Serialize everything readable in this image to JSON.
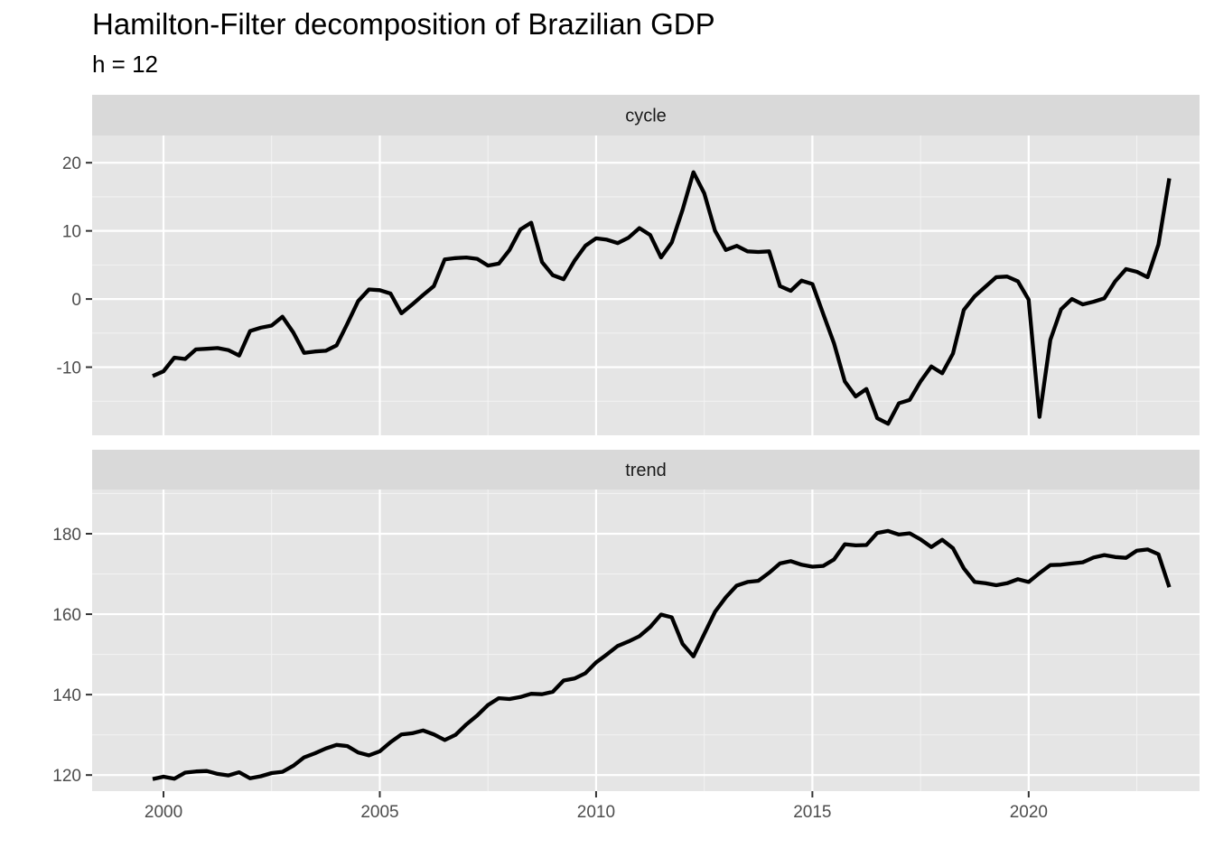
{
  "title": "Hamilton-Filter decomposition of Brazilian GDP",
  "subtitle": "h = 12",
  "chart_data": {
    "type": "line",
    "title": "Hamilton-Filter decomposition of Brazilian GDP",
    "subtitle": "h = 12",
    "xlabel": "",
    "ylabel": "",
    "grid": true,
    "legend": "none",
    "line_color": "#000000",
    "panel_background": "#e5e5e5",
    "strip_background": "#d9d9d9",
    "x_ticks": [
      2000,
      2005,
      2010,
      2015,
      2020
    ],
    "x": [
      1999.75,
      2000.0,
      2000.25,
      2000.5,
      2000.75,
      2001.0,
      2001.25,
      2001.5,
      2001.75,
      2002.0,
      2002.25,
      2002.5,
      2002.75,
      2003.0,
      2003.25,
      2003.5,
      2003.75,
      2004.0,
      2004.25,
      2004.5,
      2004.75,
      2005.0,
      2005.25,
      2005.5,
      2005.75,
      2006.0,
      2006.25,
      2006.5,
      2006.75,
      2007.0,
      2007.25,
      2007.5,
      2007.75,
      2008.0,
      2008.25,
      2008.5,
      2008.75,
      2009.0,
      2009.25,
      2009.5,
      2009.75,
      2010.0,
      2010.25,
      2010.5,
      2010.75,
      2011.0,
      2011.25,
      2011.5,
      2011.75,
      2012.0,
      2012.25,
      2012.5,
      2012.75,
      2013.0,
      2013.25,
      2013.5,
      2013.75,
      2014.0,
      2014.25,
      2014.5,
      2014.75,
      2015.0,
      2015.25,
      2015.5,
      2015.75,
      2016.0,
      2016.25,
      2016.5,
      2016.75,
      2017.0,
      2017.25,
      2017.5,
      2017.75,
      2018.0,
      2018.25,
      2018.5,
      2018.75,
      2019.0,
      2019.25,
      2019.5,
      2019.75,
      2020.0,
      2020.25,
      2020.5,
      2020.75,
      2021.0,
      2021.25,
      2021.5,
      2021.75,
      2022.0,
      2022.25,
      2022.5,
      2022.75,
      2023.0,
      2023.25
    ],
    "series": [
      {
        "name": "cycle",
        "ylim": [
          -20,
          24
        ],
        "y_ticks": [
          -10,
          0,
          10,
          20
        ],
        "values": [
          -11.3,
          -10.6,
          -8.6,
          -8.8,
          -7.4,
          -7.3,
          -7.2,
          -7.5,
          -8.3,
          -4.7,
          -4.2,
          -3.9,
          -2.6,
          -4.9,
          -7.9,
          -7.7,
          -7.6,
          -6.8,
          -3.6,
          -0.3,
          1.4,
          1.3,
          0.8,
          -2.1,
          -0.8,
          0.6,
          1.9,
          5.8,
          6.0,
          6.1,
          5.9,
          4.9,
          5.2,
          7.2,
          10.2,
          11.2,
          5.4,
          3.5,
          2.9,
          5.6,
          7.8,
          8.9,
          8.7,
          8.2,
          9.0,
          10.4,
          9.4,
          6.1,
          8.3,
          13.1,
          18.6,
          15.5,
          10.0,
          7.2,
          7.8,
          7.0,
          6.9,
          7.0,
          1.9,
          1.2,
          2.7,
          2.2,
          -2.2,
          -6.5,
          -12.1,
          -14.3,
          -13.2,
          -17.5,
          -18.3,
          -15.3,
          -14.8,
          -12.1,
          -9.9,
          -10.9,
          -8.0,
          -1.6,
          0.4,
          1.8,
          3.2,
          3.3,
          2.6,
          -0.1,
          -17.3,
          -6.0,
          -1.5,
          0.0,
          -0.8,
          -0.4,
          0.1,
          2.6,
          4.4,
          4.0,
          3.2,
          8.0,
          17.7
        ]
      },
      {
        "name": "trend",
        "ylim": [
          116,
          191
        ],
        "y_ticks": [
          120,
          140,
          160,
          180
        ],
        "values": [
          119.0,
          119.6,
          119.1,
          120.6,
          120.9,
          121.0,
          120.3,
          119.9,
          120.7,
          119.2,
          119.7,
          120.5,
          120.8,
          122.3,
          124.4,
          125.4,
          126.6,
          127.5,
          127.2,
          125.6,
          124.9,
          125.9,
          128.2,
          130.1,
          130.4,
          131.1,
          130.1,
          128.7,
          130.0,
          132.6,
          134.8,
          137.4,
          139.1,
          138.9,
          139.4,
          140.2,
          140.1,
          140.7,
          143.5,
          144.0,
          145.3,
          148.0,
          150.0,
          152.1,
          153.2,
          154.5,
          156.8,
          159.9,
          159.2,
          152.6,
          149.5,
          155.1,
          160.6,
          164.2,
          167.1,
          168.0,
          168.3,
          170.3,
          172.6,
          173.2,
          172.3,
          171.8,
          172.0,
          173.6,
          177.4,
          177.1,
          177.2,
          180.2,
          180.7,
          179.8,
          180.1,
          178.6,
          176.7,
          178.5,
          176.4,
          171.4,
          168.0,
          167.7,
          167.2,
          167.7,
          168.7,
          168.0,
          170.2,
          172.2,
          172.3,
          172.6,
          172.9,
          174.1,
          174.7,
          174.2,
          174.0,
          175.8,
          176.1,
          174.9,
          166.7
        ]
      }
    ]
  }
}
